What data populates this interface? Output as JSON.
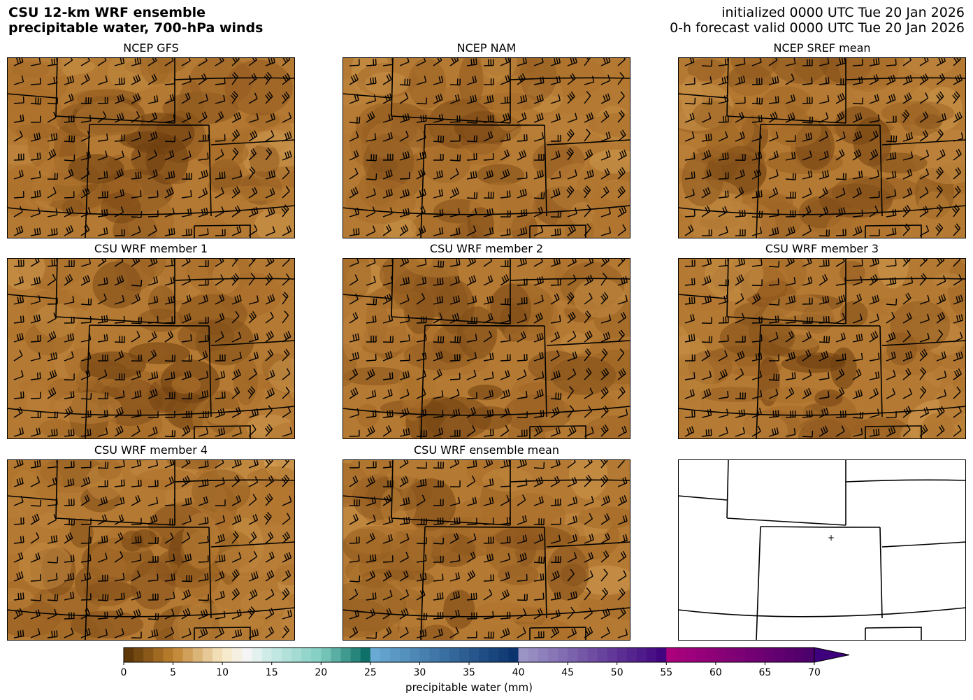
{
  "header": {
    "title_line1": "CSU 12-km WRF ensemble",
    "title_line2": "precipitable water, 700-hPa winds",
    "init_line": "initialized 0000 UTC Tue 20 Jan 2026",
    "valid_line": "0-h forecast valid 0000 UTC Tue 20 Jan 2026"
  },
  "panels": [
    {
      "title": "NCEP GFS",
      "filled": true,
      "darkness": 0.55
    },
    {
      "title": "NCEP NAM",
      "filled": true,
      "darkness": 0.45
    },
    {
      "title": "NCEP SREF mean",
      "filled": true,
      "darkness": 0.6
    },
    {
      "title": "CSU WRF member 1",
      "filled": true,
      "darkness": 0.55
    },
    {
      "title": "CSU WRF member 2",
      "filled": true,
      "darkness": 0.55
    },
    {
      "title": "CSU WRF member 3",
      "filled": true,
      "darkness": 0.45
    },
    {
      "title": "CSU WRF member 4",
      "filled": true,
      "darkness": 0.5
    },
    {
      "title": "CSU WRF ensemble mean",
      "filled": true,
      "darkness": 0.5
    },
    {
      "title": "",
      "filled": false,
      "darkness": 0
    }
  ],
  "colorbar": {
    "label": "precipitable water (mm)",
    "ticks": [
      "0",
      "5",
      "10",
      "15",
      "20",
      "25",
      "30",
      "35",
      "40",
      "45",
      "50",
      "55",
      "60",
      "65",
      "70"
    ],
    "min": 0,
    "max": 70,
    "extend": "max"
  }
}
